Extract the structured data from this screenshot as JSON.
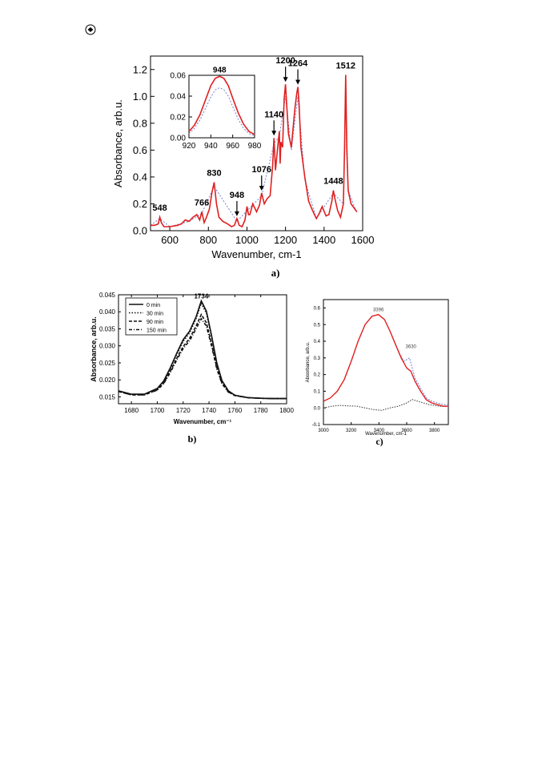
{
  "chart_data": [
    {
      "type": "line",
      "panel_label": "a)",
      "xlabel": "Wavenumber, cm-1",
      "ylabel": "Absorbance, arb.u.",
      "xlim": [
        500,
        1600
      ],
      "ylim": [
        0.0,
        1.3
      ],
      "x_ticks": [
        "600",
        "800",
        "1000",
        "1200",
        "1400",
        "1600"
      ],
      "y_ticks": [
        "0.0",
        "0.2",
        "0.4",
        "0.6",
        "0.8",
        "1.0",
        "1.2"
      ],
      "grid": false,
      "colors": {
        "solid": "#e02020",
        "dotted": "#6f7fcf"
      },
      "series": [
        {
          "style": "solid",
          "x": [
            500,
            520,
            540,
            548,
            556,
            570,
            600,
            640,
            660,
            680,
            700,
            720,
            740,
            755,
            766,
            778,
            790,
            805,
            818,
            830,
            842,
            855,
            875,
            900,
            920,
            935,
            948,
            960,
            975,
            990,
            1000,
            1008,
            1015,
            1030,
            1050,
            1065,
            1076,
            1090,
            1105,
            1120,
            1133,
            1140,
            1148,
            1158,
            1168,
            1172,
            1176,
            1185,
            1193,
            1200,
            1207,
            1215,
            1230,
            1248,
            1258,
            1264,
            1270,
            1280,
            1300,
            1320,
            1340,
            1360,
            1375,
            1390,
            1410,
            1425,
            1440,
            1448,
            1456,
            1470,
            1485,
            1500,
            1506,
            1512,
            1518,
            1525,
            1540,
            1555,
            1570
          ],
          "y": [
            0.04,
            0.04,
            0.05,
            0.1,
            0.06,
            0.03,
            0.03,
            0.04,
            0.05,
            0.08,
            0.07,
            0.1,
            0.12,
            0.08,
            0.14,
            0.06,
            0.1,
            0.16,
            0.28,
            0.36,
            0.2,
            0.1,
            0.07,
            0.05,
            0.03,
            0.04,
            0.09,
            0.04,
            0.03,
            0.08,
            0.18,
            0.12,
            0.12,
            0.2,
            0.14,
            0.19,
            0.28,
            0.2,
            0.24,
            0.26,
            0.48,
            0.69,
            0.45,
            0.6,
            0.74,
            0.5,
            0.66,
            0.62,
            0.98,
            1.09,
            0.92,
            0.72,
            0.62,
            0.9,
            1.02,
            1.07,
            0.95,
            0.62,
            0.4,
            0.22,
            0.15,
            0.09,
            0.13,
            0.18,
            0.11,
            0.12,
            0.22,
            0.3,
            0.24,
            0.15,
            0.1,
            0.2,
            0.62,
            1.16,
            0.6,
            0.3,
            0.2,
            0.17,
            0.14
          ]
        },
        {
          "style": "dotted",
          "x": [
            500,
            548,
            600,
            700,
            766,
            830,
            948,
            1076,
            1140,
            1168,
            1200,
            1230,
            1264,
            1300,
            1360,
            1448,
            1500,
            1512,
            1525,
            1570
          ],
          "y": [
            0.04,
            0.09,
            0.03,
            0.07,
            0.13,
            0.33,
            0.07,
            0.26,
            0.65,
            0.7,
            1.0,
            0.6,
            1.0,
            0.38,
            0.09,
            0.28,
            0.2,
            1.08,
            0.3,
            0.13
          ]
        }
      ],
      "annotations": [
        {
          "text": "548",
          "x": 548,
          "y": 0.1
        },
        {
          "text": "766",
          "x": 766,
          "y": 0.14
        },
        {
          "text": "830",
          "x": 830,
          "y": 0.36
        },
        {
          "text": "948",
          "x": 948,
          "y": 0.09,
          "arrow": true
        },
        {
          "text": "1076",
          "x": 1076,
          "y": 0.28,
          "arrow": true
        },
        {
          "text": "1140",
          "x": 1140,
          "y": 0.69,
          "arrow": true
        },
        {
          "text": "1200",
          "x": 1200,
          "y": 1.09,
          "arrow": true
        },
        {
          "text": "1264",
          "x": 1264,
          "y": 1.07,
          "arrow": true
        },
        {
          "text": "1448",
          "x": 1448,
          "y": 0.3
        },
        {
          "text": "1512",
          "x": 1512,
          "y": 1.16
        }
      ],
      "inset": {
        "xlim": [
          920,
          980
        ],
        "ylim": [
          0.0,
          0.06
        ],
        "x_ticks": [
          "920",
          "940",
          "960",
          "980"
        ],
        "y_ticks": [
          "0.00",
          "0.02",
          "0.04",
          "0.06"
        ],
        "peak_label": "948",
        "series": [
          {
            "style": "solid",
            "x": [
              920,
              925,
              930,
              935,
              940,
              944,
              948,
              952,
              956,
              960,
              965,
              970,
              975,
              980
            ],
            "y": [
              0.006,
              0.012,
              0.022,
              0.036,
              0.05,
              0.057,
              0.059,
              0.057,
              0.05,
              0.038,
              0.024,
              0.013,
              0.006,
              0.003
            ]
          },
          {
            "style": "dotted",
            "x": [
              920,
              925,
              930,
              935,
              940,
              944,
              948,
              952,
              956,
              960,
              965,
              970,
              975,
              980
            ],
            "y": [
              0.004,
              0.009,
              0.017,
              0.028,
              0.039,
              0.046,
              0.048,
              0.046,
              0.04,
              0.03,
              0.018,
              0.009,
              0.004,
              0.002
            ]
          }
        ]
      }
    },
    {
      "type": "line",
      "panel_label": "b)",
      "xlabel": "Wavenumber, cm⁻¹",
      "ylabel": "Absorbance, arb.u.",
      "xlim": [
        1670,
        1800
      ],
      "ylim": [
        0.013,
        0.045
      ],
      "x_ticks": [
        "1680",
        "1700",
        "1720",
        "1740",
        "1760",
        "1780",
        "1800"
      ],
      "y_ticks": [
        "0.015",
        "0.020",
        "0.025",
        "0.030",
        "0.035",
        "0.040",
        "0.045"
      ],
      "peak_label": "1734",
      "legend_position": "top-left",
      "series": [
        {
          "name": "0 min",
          "style": "solid",
          "x": [
            1670,
            1680,
            1690,
            1700,
            1705,
            1710,
            1715,
            1720,
            1725,
            1730,
            1734,
            1738,
            1742,
            1746,
            1750,
            1755,
            1760,
            1770,
            1780,
            1790,
            1800
          ],
          "y": [
            0.0168,
            0.0158,
            0.0158,
            0.0175,
            0.0197,
            0.0235,
            0.0278,
            0.0318,
            0.0343,
            0.0385,
            0.0432,
            0.0402,
            0.033,
            0.025,
            0.0198,
            0.0168,
            0.0155,
            0.0148,
            0.0146,
            0.0145,
            0.0145
          ]
        },
        {
          "name": "30 min",
          "style": "dotted",
          "x": [
            1670,
            1680,
            1690,
            1700,
            1705,
            1710,
            1715,
            1720,
            1725,
            1730,
            1734,
            1738,
            1742,
            1746,
            1750,
            1755,
            1760,
            1770,
            1780,
            1790,
            1800
          ],
          "y": [
            0.0167,
            0.0157,
            0.0157,
            0.0174,
            0.0195,
            0.0232,
            0.0274,
            0.0313,
            0.0338,
            0.038,
            0.0425,
            0.0396,
            0.0326,
            0.0247,
            0.0197,
            0.0167,
            0.0155,
            0.0148,
            0.0146,
            0.0145,
            0.0145
          ]
        },
        {
          "name": "90 min",
          "style": "dashed",
          "x": [
            1670,
            1680,
            1690,
            1700,
            1705,
            1710,
            1715,
            1720,
            1725,
            1730,
            1734,
            1738,
            1742,
            1746,
            1750,
            1755,
            1760,
            1770,
            1780,
            1790,
            1800
          ],
          "y": [
            0.0166,
            0.0156,
            0.0156,
            0.0171,
            0.0191,
            0.0225,
            0.0263,
            0.0298,
            0.0322,
            0.0358,
            0.0392,
            0.0368,
            0.0306,
            0.0236,
            0.0191,
            0.0165,
            0.0154,
            0.0148,
            0.0146,
            0.0145,
            0.0145
          ]
        },
        {
          "name": "150 min",
          "style": "dashdot",
          "x": [
            1670,
            1680,
            1690,
            1700,
            1705,
            1710,
            1715,
            1720,
            1725,
            1730,
            1734,
            1738,
            1742,
            1746,
            1750,
            1755,
            1760,
            1770,
            1780,
            1790,
            1800
          ],
          "y": [
            0.0166,
            0.0156,
            0.0156,
            0.017,
            0.0189,
            0.0221,
            0.0258,
            0.0292,
            0.0315,
            0.035,
            0.038,
            0.0358,
            0.0299,
            0.0232,
            0.0189,
            0.0164,
            0.0154,
            0.0148,
            0.0146,
            0.0145,
            0.0145
          ]
        }
      ]
    },
    {
      "type": "line",
      "panel_label": "c)",
      "xlabel": "Wavenumber, cm-1",
      "ylabel": "Absorbance, arb.u.",
      "xlim": [
        3000,
        3900
      ],
      "ylim": [
        -0.1,
        0.65
      ],
      "x_ticks": [
        "3000",
        "3200",
        "3400",
        "3600",
        "3800"
      ],
      "y_ticks": [
        "-0.1",
        "0.0",
        "0.1",
        "0.2",
        "0.3",
        "0.4",
        "0.5",
        "0.6"
      ],
      "colors": {
        "red": "#e02020",
        "blue": "#6f7fcf",
        "black": "#333333"
      },
      "annotations": [
        {
          "text": "3396",
          "x": 3396,
          "y": 0.56
        },
        {
          "text": "3630",
          "x": 3630,
          "y": 0.34
        }
      ],
      "series": [
        {
          "style": "solid-red",
          "x": [
            3000,
            3050,
            3100,
            3150,
            3200,
            3250,
            3300,
            3350,
            3396,
            3440,
            3480,
            3520,
            3560,
            3600,
            3630,
            3660,
            3700,
            3740,
            3780,
            3820,
            3860,
            3900
          ],
          "y": [
            0.04,
            0.06,
            0.1,
            0.17,
            0.28,
            0.4,
            0.5,
            0.55,
            0.56,
            0.53,
            0.46,
            0.38,
            0.3,
            0.24,
            0.22,
            0.16,
            0.1,
            0.05,
            0.03,
            0.02,
            0.01,
            0.01
          ]
        },
        {
          "style": "dotted-blue",
          "x": [
            3500,
            3540,
            3580,
            3620,
            3640,
            3660,
            3700,
            3740,
            3780,
            3820,
            3860,
            3900
          ],
          "y": [
            0.42,
            0.34,
            0.28,
            0.3,
            0.24,
            0.18,
            0.12,
            0.06,
            0.04,
            0.03,
            0.02,
            0.02
          ]
        },
        {
          "style": "solid-black",
          "x": [
            3000,
            3060,
            3120,
            3180,
            3240,
            3300,
            3360,
            3420,
            3480,
            3540,
            3600,
            3640,
            3680,
            3720,
            3760,
            3800,
            3840,
            3880,
            3900
          ],
          "y": [
            0.0,
            0.01,
            0.015,
            0.012,
            0.01,
            0.0,
            -0.01,
            -0.015,
            0.0,
            0.01,
            0.03,
            0.05,
            0.04,
            0.03,
            0.02,
            0.015,
            0.01,
            0.008,
            0.01
          ]
        }
      ]
    }
  ]
}
